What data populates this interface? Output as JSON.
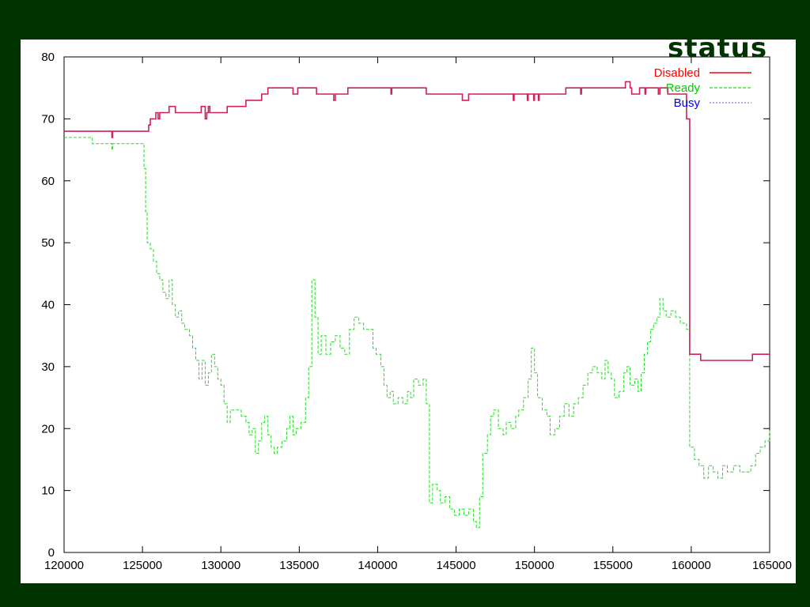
{
  "chart_data": {
    "type": "line",
    "title": "status",
    "xlabel": "",
    "ylabel": "",
    "xlim": [
      120000,
      165000
    ],
    "ylim": [
      0,
      80
    ],
    "x_ticks": [
      "120000",
      "125000",
      "130000",
      "135000",
      "140000",
      "145000",
      "150000",
      "155000",
      "160000",
      "165000"
    ],
    "y_ticks": [
      "0",
      "10",
      "20",
      "30",
      "40",
      "50",
      "60",
      "70",
      "80"
    ],
    "grid": false,
    "legend_position": "top-right",
    "colors": {
      "disabled": "#cc2255",
      "disabled_legend": "#ff0000",
      "ready": "#22dd22",
      "busy": "#7777ff"
    },
    "series": [
      {
        "name": "Disabled",
        "style": "solid",
        "points": [
          [
            120000,
            68
          ],
          [
            123000,
            68
          ],
          [
            123050,
            67
          ],
          [
            123100,
            68
          ],
          [
            125300,
            68
          ],
          [
            125400,
            69
          ],
          [
            125500,
            70
          ],
          [
            125800,
            70
          ],
          [
            125850,
            71
          ],
          [
            126000,
            70
          ],
          [
            126100,
            71
          ],
          [
            126600,
            71
          ],
          [
            126700,
            72
          ],
          [
            127000,
            72
          ],
          [
            127100,
            71
          ],
          [
            128700,
            71
          ],
          [
            128750,
            72
          ],
          [
            128900,
            72
          ],
          [
            129000,
            70
          ],
          [
            129100,
            71
          ],
          [
            129200,
            72
          ],
          [
            129300,
            71
          ],
          [
            130300,
            71
          ],
          [
            130400,
            72
          ],
          [
            131500,
            72
          ],
          [
            131600,
            73
          ],
          [
            132500,
            73
          ],
          [
            132600,
            74
          ],
          [
            132900,
            74
          ],
          [
            133000,
            75
          ],
          [
            134500,
            75
          ],
          [
            134600,
            74
          ],
          [
            134800,
            74
          ],
          [
            134900,
            75
          ],
          [
            136000,
            75
          ],
          [
            136100,
            74
          ],
          [
            137100,
            74
          ],
          [
            137200,
            73
          ],
          [
            137300,
            74
          ],
          [
            138000,
            74
          ],
          [
            138100,
            75
          ],
          [
            140800,
            75
          ],
          [
            140850,
            74
          ],
          [
            140900,
            75
          ],
          [
            143000,
            75
          ],
          [
            143100,
            74
          ],
          [
            145300,
            74
          ],
          [
            145400,
            73
          ],
          [
            145700,
            73
          ],
          [
            145800,
            74
          ],
          [
            148600,
            74
          ],
          [
            148650,
            73
          ],
          [
            148700,
            74
          ],
          [
            149500,
            74
          ],
          [
            149550,
            73
          ],
          [
            149600,
            74
          ],
          [
            149900,
            74
          ],
          [
            149950,
            73
          ],
          [
            150000,
            74
          ],
          [
            150200,
            74
          ],
          [
            150250,
            73
          ],
          [
            150300,
            74
          ],
          [
            151900,
            74
          ],
          [
            152000,
            75
          ],
          [
            152900,
            75
          ],
          [
            152950,
            74
          ],
          [
            153000,
            75
          ],
          [
            155700,
            75
          ],
          [
            155800,
            76
          ],
          [
            156000,
            76
          ],
          [
            156100,
            75
          ],
          [
            156200,
            74
          ],
          [
            156600,
            74
          ],
          [
            156700,
            75
          ],
          [
            157000,
            75
          ],
          [
            157050,
            74
          ],
          [
            157100,
            75
          ],
          [
            157800,
            75
          ],
          [
            157900,
            74
          ],
          [
            158000,
            75
          ],
          [
            158400,
            75
          ],
          [
            158500,
            74
          ],
          [
            159600,
            74
          ],
          [
            159700,
            70
          ],
          [
            159900,
            32
          ],
          [
            160500,
            32
          ],
          [
            160600,
            31
          ],
          [
            163800,
            31
          ],
          [
            163900,
            32
          ],
          [
            165000,
            32
          ]
        ]
      },
      {
        "name": "Ready",
        "style": "dashed",
        "points": [
          [
            120000,
            67
          ],
          [
            121700,
            67
          ],
          [
            121800,
            66
          ],
          [
            123000,
            66
          ],
          [
            123050,
            65
          ],
          [
            123100,
            66
          ],
          [
            125000,
            66
          ],
          [
            125100,
            62
          ],
          [
            125200,
            55
          ],
          [
            125300,
            50
          ],
          [
            125500,
            49
          ],
          [
            125700,
            47
          ],
          [
            125900,
            45
          ],
          [
            126100,
            44
          ],
          [
            126300,
            42
          ],
          [
            126500,
            41
          ],
          [
            126700,
            44
          ],
          [
            126900,
            40
          ],
          [
            127100,
            38
          ],
          [
            127300,
            39
          ],
          [
            127500,
            37
          ],
          [
            127700,
            36
          ],
          [
            128000,
            35
          ],
          [
            128200,
            33
          ],
          [
            128400,
            31
          ],
          [
            128600,
            28
          ],
          [
            128800,
            31
          ],
          [
            129000,
            27
          ],
          [
            129200,
            29
          ],
          [
            129400,
            32
          ],
          [
            129600,
            30
          ],
          [
            129800,
            28
          ],
          [
            130000,
            27
          ],
          [
            130200,
            24
          ],
          [
            130400,
            21
          ],
          [
            130600,
            23
          ],
          [
            131000,
            23
          ],
          [
            131300,
            22
          ],
          [
            131600,
            21
          ],
          [
            131800,
            19
          ],
          [
            132000,
            20
          ],
          [
            132200,
            16
          ],
          [
            132400,
            18
          ],
          [
            132600,
            21
          ],
          [
            132800,
            22
          ],
          [
            133000,
            19
          ],
          [
            133200,
            17
          ],
          [
            133400,
            16
          ],
          [
            133600,
            17
          ],
          [
            133900,
            18
          ],
          [
            134200,
            20
          ],
          [
            134400,
            22
          ],
          [
            134600,
            19
          ],
          [
            134800,
            20
          ],
          [
            135100,
            21
          ],
          [
            135400,
            25
          ],
          [
            135600,
            30
          ],
          [
            135800,
            44
          ],
          [
            136000,
            38
          ],
          [
            136200,
            32
          ],
          [
            136400,
            35
          ],
          [
            136700,
            32
          ],
          [
            137000,
            34
          ],
          [
            137300,
            35
          ],
          [
            137600,
            33
          ],
          [
            137900,
            32
          ],
          [
            138200,
            36
          ],
          [
            138500,
            38
          ],
          [
            138800,
            37
          ],
          [
            139100,
            36
          ],
          [
            139400,
            36
          ],
          [
            139700,
            33
          ],
          [
            139900,
            32
          ],
          [
            140200,
            30
          ],
          [
            140400,
            27
          ],
          [
            140600,
            25
          ],
          [
            140800,
            26
          ],
          [
            141000,
            24
          ],
          [
            141300,
            25
          ],
          [
            141600,
            24
          ],
          [
            141900,
            26
          ],
          [
            142100,
            25
          ],
          [
            142300,
            28
          ],
          [
            142600,
            27
          ],
          [
            142900,
            28
          ],
          [
            143100,
            24
          ],
          [
            143300,
            8
          ],
          [
            143500,
            11
          ],
          [
            143800,
            10
          ],
          [
            144000,
            8
          ],
          [
            144300,
            9
          ],
          [
            144600,
            7
          ],
          [
            144900,
            6
          ],
          [
            145200,
            7
          ],
          [
            145500,
            6
          ],
          [
            145800,
            7
          ],
          [
            146100,
            5
          ],
          [
            146300,
            4
          ],
          [
            146500,
            9
          ],
          [
            146700,
            16
          ],
          [
            147000,
            19
          ],
          [
            147200,
            22
          ],
          [
            147400,
            23
          ],
          [
            147700,
            20
          ],
          [
            148000,
            19
          ],
          [
            148200,
            21
          ],
          [
            148500,
            20
          ],
          [
            148800,
            22
          ],
          [
            149000,
            23
          ],
          [
            149300,
            25
          ],
          [
            149600,
            28
          ],
          [
            149800,
            33
          ],
          [
            150000,
            29
          ],
          [
            150200,
            25
          ],
          [
            150500,
            23
          ],
          [
            150800,
            22
          ],
          [
            151000,
            19
          ],
          [
            151300,
            20
          ],
          [
            151600,
            22
          ],
          [
            151900,
            24
          ],
          [
            152200,
            22
          ],
          [
            152500,
            24
          ],
          [
            152800,
            25
          ],
          [
            153100,
            27
          ],
          [
            153400,
            29
          ],
          [
            153700,
            30
          ],
          [
            154000,
            29
          ],
          [
            154300,
            28
          ],
          [
            154500,
            31
          ],
          [
            154700,
            29
          ],
          [
            154900,
            28
          ],
          [
            155100,
            25
          ],
          [
            155400,
            26
          ],
          [
            155700,
            29
          ],
          [
            155900,
            30
          ],
          [
            156100,
            27
          ],
          [
            156400,
            28
          ],
          [
            156600,
            26
          ],
          [
            156800,
            29
          ],
          [
            157000,
            32
          ],
          [
            157200,
            34
          ],
          [
            157400,
            36
          ],
          [
            157600,
            37
          ],
          [
            157800,
            38
          ],
          [
            158000,
            41
          ],
          [
            158200,
            39
          ],
          [
            158400,
            38
          ],
          [
            158700,
            39
          ],
          [
            159000,
            38
          ],
          [
            159300,
            37
          ],
          [
            159600,
            37
          ],
          [
            159700,
            36
          ],
          [
            159900,
            17
          ],
          [
            160200,
            15
          ],
          [
            160500,
            14
          ],
          [
            160800,
            12
          ],
          [
            161100,
            14
          ],
          [
            161400,
            13
          ],
          [
            161700,
            12
          ],
          [
            162000,
            14
          ],
          [
            162300,
            13
          ],
          [
            162700,
            14
          ],
          [
            163100,
            13
          ],
          [
            163500,
            13
          ],
          [
            163800,
            14
          ],
          [
            164100,
            16
          ],
          [
            164400,
            17
          ],
          [
            164700,
            18
          ],
          [
            165000,
            20
          ]
        ]
      },
      {
        "name": "Busy",
        "style": "dotted",
        "points": []
      }
    ]
  }
}
